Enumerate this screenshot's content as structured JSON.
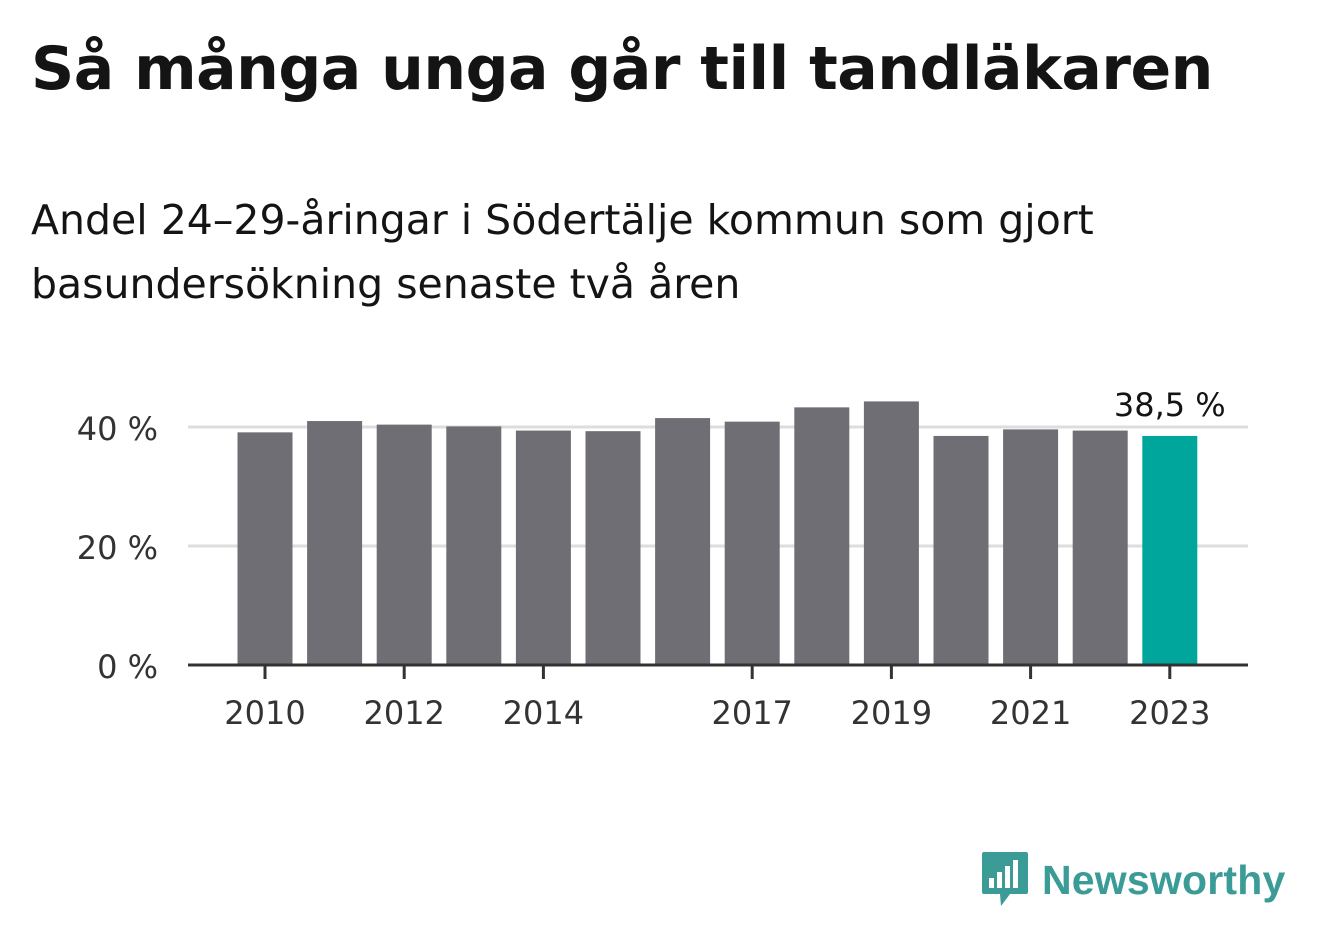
{
  "title": "Så många unga går till tandläkaren",
  "subtitle": "Andel 24–29-åringar i Södertälje kommun som gjort basundersökning senaste två åren",
  "brand": {
    "name": "Newsworthy",
    "color": "#3a9b97",
    "icon": "newsworthy-logo-icon"
  },
  "chart_data": {
    "type": "bar",
    "title": "Så många unga går till tandläkaren",
    "subtitle": "Andel 24–29-åringar i Södertälje kommun som gjort basundersökning senaste två åren",
    "xlabel": "",
    "ylabel": "",
    "categories": [
      "2010",
      "2011",
      "2012",
      "2013",
      "2014",
      "2015",
      "2016",
      "2017",
      "2018",
      "2019",
      "2020",
      "2021",
      "2022",
      "2023"
    ],
    "x_tick_labels": [
      "2010",
      "2012",
      "2014",
      "2017",
      "2019",
      "2021",
      "2023"
    ],
    "values": [
      39.1,
      41.0,
      40.4,
      40.1,
      39.4,
      39.3,
      41.5,
      40.9,
      43.3,
      44.3,
      38.5,
      39.6,
      39.4,
      38.5
    ],
    "highlight": {
      "category": "2023",
      "label": "38,5 %",
      "color": "#00a59b"
    },
    "bar_color": "#6e6e74",
    "ylim": [
      0,
      45
    ],
    "y_ticks": [
      0,
      20,
      40
    ],
    "y_tick_labels": [
      "0 %",
      "20 %",
      "40 %"
    ],
    "grid": true,
    "legend": "none"
  }
}
